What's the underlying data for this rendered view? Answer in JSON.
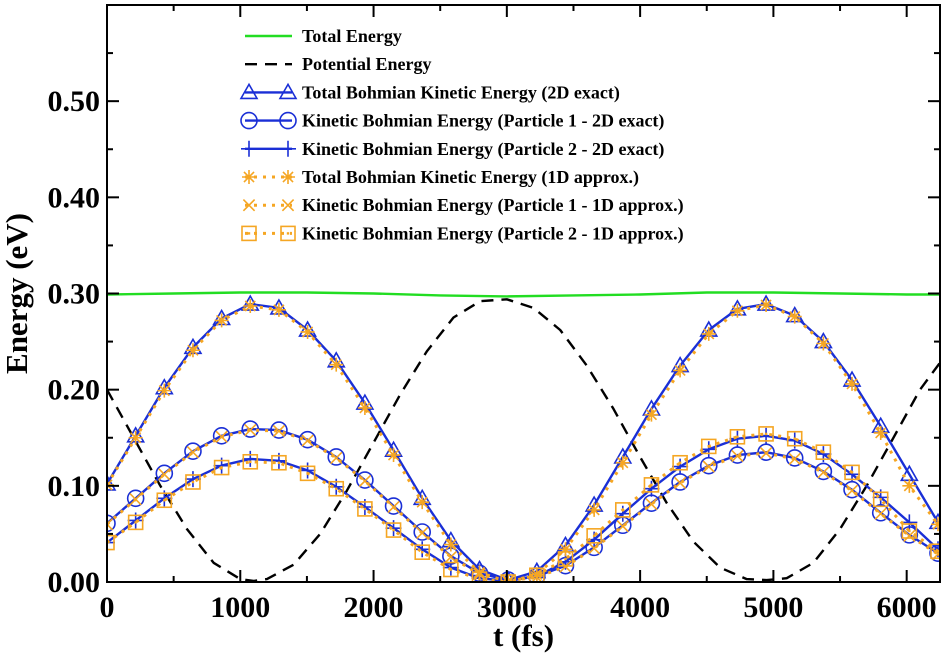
{
  "chart_data": {
    "type": "line",
    "xlabel": "t (fs)",
    "ylabel": "Energy (eV)",
    "xlim": [
      0,
      6250
    ],
    "ylim": [
      0,
      0.6
    ],
    "xticks": [
      0,
      1000,
      2000,
      3000,
      4000,
      5000,
      6000
    ],
    "xtick_labels": [
      "0",
      "1000",
      "2000",
      "3000",
      "4000",
      "5000",
      "6000"
    ],
    "yticks": [
      0,
      0.1,
      0.2,
      0.3,
      0.4,
      0.5
    ],
    "ytick_labels": [
      "0.00",
      "0.10",
      "0.20",
      "0.30",
      "0.40",
      "0.50"
    ],
    "grid": false,
    "legend_position": "top-center",
    "series": [
      {
        "name": "Total Energy",
        "color": "#22dd22",
        "line": "solid",
        "marker": "none",
        "x": [
          0,
          500,
          1000,
          1500,
          2000,
          2500,
          3000,
          3500,
          4000,
          4500,
          5000,
          5500,
          6000,
          6250
        ],
        "y": [
          0.299,
          0.3,
          0.301,
          0.301,
          0.3,
          0.298,
          0.297,
          0.298,
          0.299,
          0.301,
          0.301,
          0.3,
          0.299,
          0.299
        ]
      },
      {
        "name": "Potential Energy",
        "color": "#000000",
        "line": "dashed",
        "marker": "none",
        "x": [
          0,
          200,
          400,
          600,
          800,
          1000,
          1100,
          1200,
          1400,
          1600,
          1800,
          2000,
          2200,
          2400,
          2600,
          2800,
          3000,
          3200,
          3400,
          3600,
          3800,
          4000,
          4200,
          4400,
          4600,
          4800,
          4950,
          5100,
          5300,
          5500,
          5700,
          5900,
          6100,
          6250
        ],
        "y": [
          0.2,
          0.15,
          0.1,
          0.055,
          0.02,
          0.003,
          0.001,
          0.003,
          0.018,
          0.05,
          0.095,
          0.145,
          0.195,
          0.24,
          0.275,
          0.292,
          0.294,
          0.285,
          0.262,
          0.225,
          0.18,
          0.13,
          0.082,
          0.042,
          0.015,
          0.003,
          0.002,
          0.004,
          0.02,
          0.055,
          0.1,
          0.15,
          0.2,
          0.228
        ]
      },
      {
        "name": "Total Bohmian Kinetic Energy (2D exact)",
        "color": "#1a2fd6",
        "line": "solid",
        "marker": "triangle",
        "x": [
          0,
          215,
          430,
          645,
          860,
          1075,
          1290,
          1505,
          1720,
          1935,
          2150,
          2365,
          2580,
          2795,
          3010,
          3225,
          3440,
          3655,
          3870,
          4085,
          4300,
          4515,
          4730,
          4945,
          5160,
          5375,
          5590,
          5805,
          6020,
          6235
        ],
        "y": [
          0.102,
          0.152,
          0.202,
          0.244,
          0.274,
          0.289,
          0.285,
          0.262,
          0.23,
          0.186,
          0.137,
          0.087,
          0.043,
          0.013,
          0.002,
          0.011,
          0.038,
          0.08,
          0.13,
          0.18,
          0.225,
          0.262,
          0.284,
          0.289,
          0.277,
          0.25,
          0.21,
          0.162,
          0.112,
          0.062
        ]
      },
      {
        "name": "Kinetic Bohmian Energy (Particle 1 - 2D exact)",
        "color": "#1a2fd6",
        "line": "solid",
        "marker": "circle",
        "x": [
          0,
          215,
          430,
          645,
          860,
          1075,
          1290,
          1505,
          1720,
          1935,
          2150,
          2365,
          2580,
          2795,
          3010,
          3225,
          3440,
          3655,
          3870,
          4085,
          4300,
          4515,
          4730,
          4945,
          5160,
          5375,
          5590,
          5805,
          6020,
          6235
        ],
        "y": [
          0.061,
          0.087,
          0.113,
          0.136,
          0.152,
          0.159,
          0.158,
          0.148,
          0.13,
          0.106,
          0.079,
          0.052,
          0.027,
          0.009,
          0.002,
          0.006,
          0.017,
          0.036,
          0.059,
          0.082,
          0.104,
          0.121,
          0.132,
          0.135,
          0.129,
          0.115,
          0.096,
          0.072,
          0.049,
          0.03
        ]
      },
      {
        "name": "Kinetic Bohmian Energy (Particle 2 - 2D exact)",
        "color": "#1a2fd6",
        "line": "solid",
        "marker": "plus",
        "x": [
          0,
          215,
          430,
          645,
          860,
          1075,
          1290,
          1505,
          1720,
          1935,
          2150,
          2365,
          2580,
          2795,
          3010,
          3225,
          3440,
          3655,
          3870,
          4085,
          4300,
          4515,
          4730,
          4945,
          5160,
          5375,
          5590,
          5805,
          6020,
          6235
        ],
        "y": [
          0.041,
          0.064,
          0.087,
          0.107,
          0.121,
          0.128,
          0.126,
          0.116,
          0.099,
          0.078,
          0.056,
          0.034,
          0.015,
          0.004,
          0.001,
          0.006,
          0.021,
          0.044,
          0.071,
          0.097,
          0.12,
          0.138,
          0.149,
          0.152,
          0.147,
          0.133,
          0.112,
          0.088,
          0.062,
          0.034
        ]
      },
      {
        "name": "Total Bohmian Kinetic Energy (1D approx.)",
        "color": "#f5a623",
        "line": "dotted",
        "marker": "asterisk",
        "x": [
          0,
          215,
          430,
          645,
          860,
          1075,
          1290,
          1505,
          1720,
          1935,
          2150,
          2365,
          2580,
          2795,
          3010,
          3225,
          3440,
          3655,
          3870,
          4085,
          4300,
          4515,
          4730,
          4945,
          5160,
          5375,
          5590,
          5805,
          6020,
          6235
        ],
        "y": [
          0.101,
          0.15,
          0.199,
          0.241,
          0.272,
          0.287,
          0.283,
          0.26,
          0.226,
          0.181,
          0.132,
          0.083,
          0.039,
          0.01,
          0.0,
          0.008,
          0.034,
          0.075,
          0.124,
          0.174,
          0.22,
          0.258,
          0.282,
          0.288,
          0.276,
          0.248,
          0.206,
          0.155,
          0.1,
          0.06
        ]
      },
      {
        "name": "Kinetic Bohmian Energy (Particle 1 - 1D approx.)",
        "color": "#f5a623",
        "line": "dotted",
        "marker": "cross",
        "x": [
          0,
          215,
          430,
          645,
          860,
          1075,
          1290,
          1505,
          1720,
          1935,
          2150,
          2365,
          2580,
          2795,
          3010,
          3225,
          3440,
          3655,
          3870,
          4085,
          4300,
          4515,
          4730,
          4945,
          5160,
          5375,
          5590,
          5805,
          6020,
          6235
        ],
        "y": [
          0.06,
          0.086,
          0.112,
          0.135,
          0.151,
          0.158,
          0.157,
          0.147,
          0.129,
          0.105,
          0.078,
          0.051,
          0.026,
          0.008,
          0.001,
          0.005,
          0.016,
          0.035,
          0.058,
          0.081,
          0.103,
          0.12,
          0.131,
          0.134,
          0.128,
          0.114,
          0.095,
          0.071,
          0.048,
          0.029
        ]
      },
      {
        "name": "Kinetic Bohmian Energy (Particle 2 - 1D approx.)",
        "color": "#f5a623",
        "line": "dotted",
        "marker": "square",
        "x": [
          0,
          215,
          430,
          645,
          860,
          1075,
          1290,
          1505,
          1720,
          1935,
          2150,
          2365,
          2580,
          2795,
          3010,
          3225,
          3440,
          3655,
          3870,
          4085,
          4300,
          4515,
          4730,
          4945,
          5160,
          5375,
          5590,
          5805,
          6020,
          6235
        ],
        "y": [
          0.041,
          0.062,
          0.085,
          0.104,
          0.119,
          0.125,
          0.124,
          0.113,
          0.097,
          0.076,
          0.054,
          0.031,
          0.013,
          0.003,
          0.0,
          0.007,
          0.024,
          0.048,
          0.075,
          0.101,
          0.124,
          0.141,
          0.151,
          0.154,
          0.149,
          0.135,
          0.114,
          0.086,
          0.053,
          0.032
        ]
      }
    ]
  }
}
